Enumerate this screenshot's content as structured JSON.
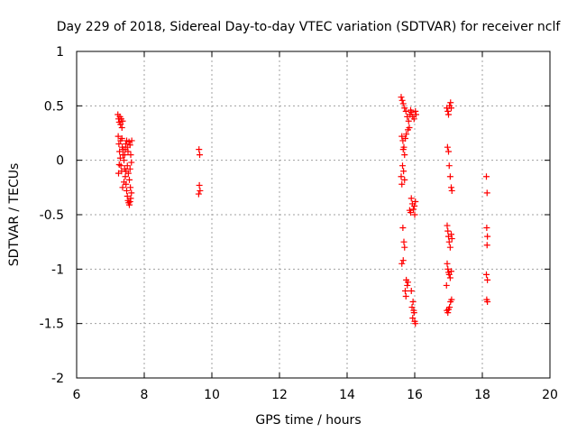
{
  "chart_data": {
    "type": "scatter",
    "title": "Day 229 of 2018, Sidereal Day-to-day VTEC variation (SDTVAR) for receiver nclf",
    "xlabel": "GPS time / hours",
    "ylabel": "SDTVAR / TECUs",
    "xlim": [
      6,
      20
    ],
    "ylim": [
      -2,
      1
    ],
    "x_ticks": [
      6,
      8,
      10,
      12,
      14,
      16,
      18,
      20
    ],
    "x_tick_labels": [
      "6",
      "8",
      "10",
      "12",
      "14",
      "16",
      "18",
      "20"
    ],
    "y_ticks": [
      -2,
      -1.5,
      -1,
      -0.5,
      0,
      0.5,
      1
    ],
    "y_tick_labels": [
      "-2",
      "-1.5",
      "-1",
      "-0.5",
      "0",
      "0.5",
      "1"
    ],
    "grid": true,
    "marker": "plus",
    "color": "#ff0000",
    "series": [
      {
        "name": "SDTVAR",
        "points": [
          [
            7.22,
            0.42
          ],
          [
            7.24,
            0.38
          ],
          [
            7.26,
            0.35
          ],
          [
            7.28,
            0.4
          ],
          [
            7.3,
            0.33
          ],
          [
            7.32,
            0.38
          ],
          [
            7.34,
            0.3
          ],
          [
            7.36,
            0.36
          ],
          [
            7.23,
            0.22
          ],
          [
            7.25,
            0.15
          ],
          [
            7.27,
            0.08
          ],
          [
            7.29,
            0.02
          ],
          [
            7.31,
            -0.05
          ],
          [
            7.33,
            -0.1
          ],
          [
            7.35,
            0.12
          ],
          [
            7.37,
            0.05
          ],
          [
            7.24,
            -0.12
          ],
          [
            7.26,
            -0.04
          ],
          [
            7.3,
            0.18
          ],
          [
            7.34,
            0.2
          ],
          [
            7.38,
            0.1
          ],
          [
            7.4,
            0.0
          ],
          [
            7.42,
            -0.08
          ],
          [
            7.44,
            -0.15
          ],
          [
            7.46,
            -0.22
          ],
          [
            7.48,
            -0.28
          ],
          [
            7.5,
            -0.33
          ],
          [
            7.52,
            -0.37
          ],
          [
            7.54,
            -0.39
          ],
          [
            7.56,
            -0.41
          ],
          [
            7.58,
            -0.38
          ],
          [
            7.6,
            -0.35
          ],
          [
            7.45,
            0.15
          ],
          [
            7.48,
            0.18
          ],
          [
            7.5,
            0.12
          ],
          [
            7.52,
            0.08
          ],
          [
            7.55,
            0.17
          ],
          [
            7.58,
            0.14
          ],
          [
            7.6,
            0.05
          ],
          [
            7.62,
            -0.02
          ],
          [
            7.5,
            -0.05
          ],
          [
            7.53,
            -0.12
          ],
          [
            7.56,
            -0.18
          ],
          [
            7.59,
            -0.25
          ],
          [
            7.62,
            -0.3
          ],
          [
            7.46,
            -0.1
          ],
          [
            7.42,
            0.05
          ],
          [
            7.4,
            -0.2
          ],
          [
            7.36,
            -0.25
          ],
          [
            7.44,
            0.1
          ],
          [
            7.58,
            -0.08
          ],
          [
            7.63,
            0.18
          ],
          [
            9.62,
            0.1
          ],
          [
            9.64,
            0.05
          ],
          [
            9.63,
            -0.23
          ],
          [
            9.65,
            -0.28
          ],
          [
            9.61,
            -0.31
          ],
          [
            15.6,
            0.58
          ],
          [
            15.63,
            0.55
          ],
          [
            15.66,
            0.52
          ],
          [
            15.7,
            0.48
          ],
          [
            15.74,
            0.45
          ],
          [
            15.78,
            0.4
          ],
          [
            15.82,
            0.36
          ],
          [
            15.86,
            0.42
          ],
          [
            15.9,
            0.44
          ],
          [
            15.94,
            0.4
          ],
          [
            15.98,
            0.38
          ],
          [
            16.02,
            0.45
          ],
          [
            16.04,
            0.42
          ],
          [
            15.84,
            0.3
          ],
          [
            15.8,
            0.28
          ],
          [
            15.88,
            0.46
          ],
          [
            15.62,
            0.22
          ],
          [
            15.65,
            0.18
          ],
          [
            15.68,
            0.12
          ],
          [
            15.7,
            0.05
          ],
          [
            15.72,
            0.2
          ],
          [
            15.75,
            0.24
          ],
          [
            15.64,
            -0.05
          ],
          [
            15.67,
            -0.1
          ],
          [
            15.6,
            -0.15
          ],
          [
            15.62,
            -0.22
          ],
          [
            15.7,
            -0.18
          ],
          [
            15.66,
            0.1
          ],
          [
            15.9,
            -0.35
          ],
          [
            15.93,
            -0.4
          ],
          [
            15.96,
            -0.45
          ],
          [
            15.99,
            -0.42
          ],
          [
            16.02,
            -0.38
          ],
          [
            15.88,
            -0.48
          ],
          [
            15.85,
            -0.46
          ],
          [
            16.0,
            -0.5
          ],
          [
            15.65,
            -0.62
          ],
          [
            15.68,
            -0.75
          ],
          [
            15.62,
            -0.95
          ],
          [
            15.66,
            -0.92
          ],
          [
            15.7,
            -0.8
          ],
          [
            15.75,
            -1.1
          ],
          [
            15.78,
            -1.15
          ],
          [
            15.8,
            -1.12
          ],
          [
            15.72,
            -1.2
          ],
          [
            15.74,
            -1.25
          ],
          [
            15.9,
            -1.2
          ],
          [
            15.95,
            -1.3
          ],
          [
            15.98,
            -1.4
          ],
          [
            16.0,
            -1.48
          ],
          [
            16.02,
            -1.5
          ],
          [
            15.94,
            -1.45
          ],
          [
            15.92,
            -1.35
          ],
          [
            15.97,
            -1.38
          ],
          [
            16.95,
            0.48
          ],
          [
            16.98,
            0.45
          ],
          [
            17.0,
            0.42
          ],
          [
            17.03,
            0.5
          ],
          [
            17.06,
            0.53
          ],
          [
            17.08,
            0.48
          ],
          [
            16.97,
            0.12
          ],
          [
            17.0,
            0.08
          ],
          [
            17.02,
            -0.05
          ],
          [
            17.05,
            -0.15
          ],
          [
            17.08,
            -0.25
          ],
          [
            17.1,
            -0.28
          ],
          [
            16.96,
            -0.6
          ],
          [
            16.98,
            -0.65
          ],
          [
            17.0,
            -0.7
          ],
          [
            17.02,
            -0.75
          ],
          [
            17.05,
            -0.8
          ],
          [
            17.08,
            -0.68
          ],
          [
            17.1,
            -0.72
          ],
          [
            16.96,
            -0.95
          ],
          [
            16.98,
            -1.0
          ],
          [
            17.0,
            -1.03
          ],
          [
            17.02,
            -1.05
          ],
          [
            17.05,
            -1.08
          ],
          [
            17.08,
            -1.02
          ],
          [
            16.94,
            -1.15
          ],
          [
            16.95,
            -1.38
          ],
          [
            16.98,
            -1.4
          ],
          [
            17.0,
            -1.37
          ],
          [
            17.03,
            -1.35
          ],
          [
            17.06,
            -1.3
          ],
          [
            17.09,
            -1.28
          ],
          [
            18.12,
            -0.15
          ],
          [
            18.14,
            -0.3
          ],
          [
            18.13,
            -0.62
          ],
          [
            18.15,
            -0.7
          ],
          [
            18.14,
            -0.78
          ],
          [
            18.12,
            -1.05
          ],
          [
            18.15,
            -1.1
          ],
          [
            18.13,
            -1.28
          ],
          [
            18.15,
            -1.3
          ]
        ]
      }
    ]
  }
}
